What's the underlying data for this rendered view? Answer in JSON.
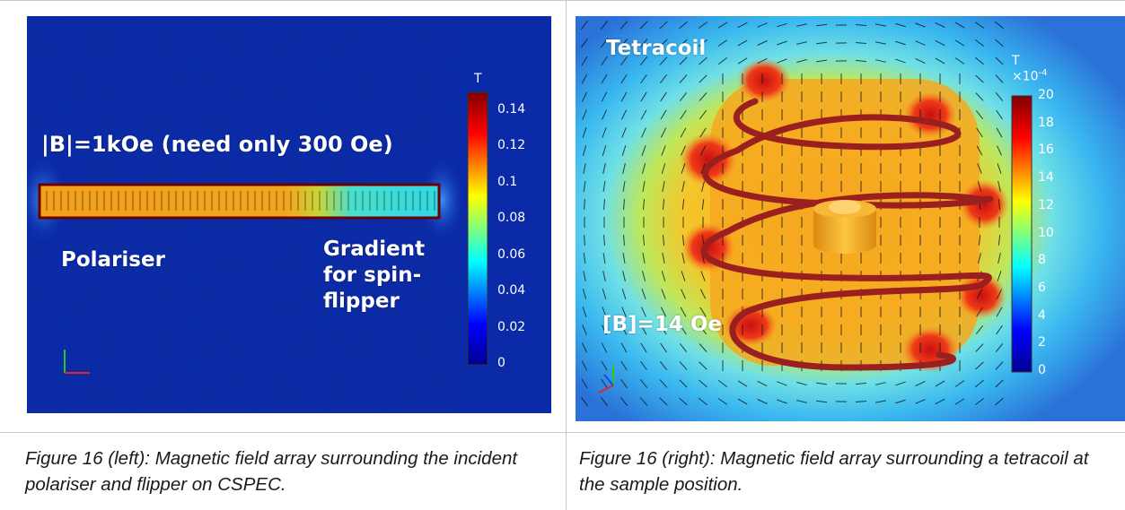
{
  "left_figure": {
    "label_field": "|B|=1kOe (need only 300 Oe)",
    "label_polariser": "Polariser",
    "label_gradient": "Gradient\nfor spin-\nflipper",
    "colorbar": {
      "unit": "T",
      "ticks": [
        "0.14",
        "0.12",
        "0.1",
        "0.08",
        "0.06",
        "0.04",
        "0.02",
        "0"
      ],
      "text_color": "#ffffff"
    },
    "colors": {
      "background": "#0b2aa8",
      "bar": "#f1a21d"
    }
  },
  "right_figure": {
    "label_title": "Tetracoil",
    "label_field": "[B]=14 Oe",
    "colorbar": {
      "unit": "T",
      "multiplier": "×10",
      "multiplier_exp": "-4",
      "ticks": [
        "20",
        "18",
        "16",
        "14",
        "12",
        "10",
        "8",
        "6",
        "4",
        "2",
        "0"
      ],
      "text_color": "#ffffff"
    },
    "colors": {
      "coil": "#9a2020",
      "sample": "#f0a020"
    }
  },
  "captions": {
    "left": "Figure 16 (left): Magnetic field array surrounding the incident polariser and flipper on CSPEC.",
    "right": "Figure 16 (right): Magnetic field array surrounding a tetracoil at the sample position."
  }
}
